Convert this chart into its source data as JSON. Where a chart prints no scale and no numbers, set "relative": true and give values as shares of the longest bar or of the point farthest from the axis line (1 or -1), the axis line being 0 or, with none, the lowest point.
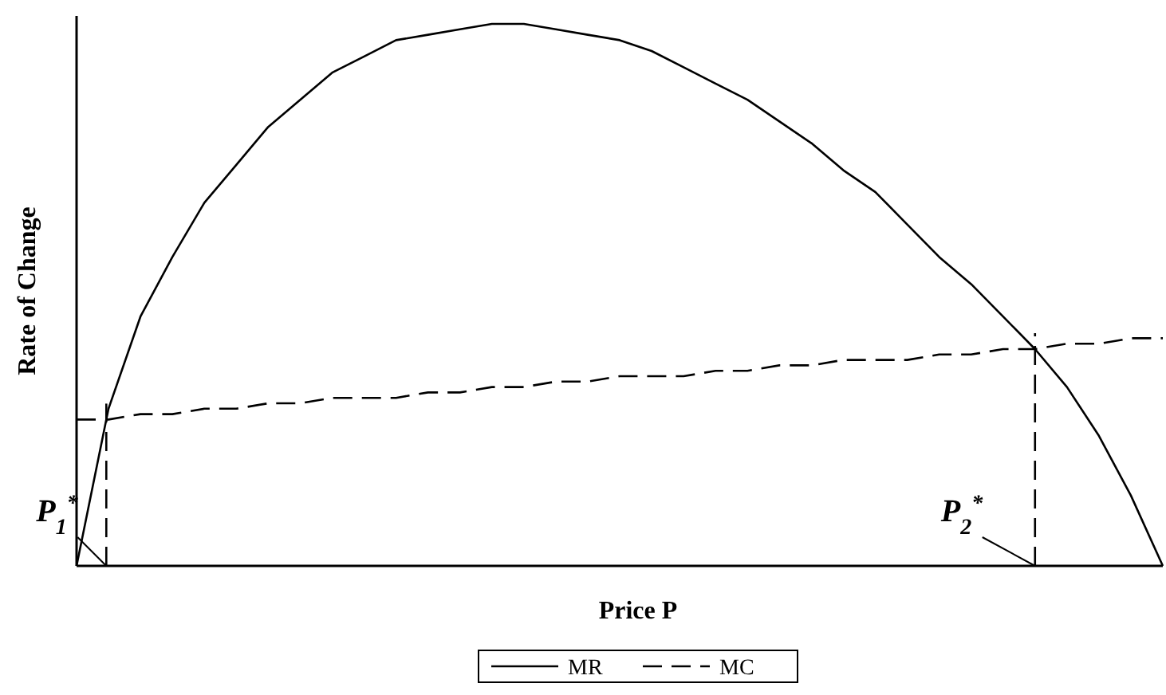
{
  "chart_data": {
    "type": "line",
    "relative": true,
    "xlabel": "Price P",
    "ylabel": "Rate of Change",
    "legend": "bottom",
    "categories": [
      null,
      null,
      null,
      null,
      null,
      null,
      null,
      null,
      null,
      null,
      null,
      null,
      null,
      null,
      null,
      null,
      null,
      null,
      null,
      null,
      null,
      null,
      null,
      null,
      null,
      null,
      null,
      null,
      null,
      null,
      null,
      null,
      null,
      null,
      null
    ],
    "series": [
      {
        "name": "MR",
        "color": "#000000",
        "line_style": "solid",
        "values": [
          0,
          0.29,
          0.46,
          0.57,
          0.67,
          0.74,
          0.81,
          0.86,
          0.91,
          0.94,
          0.97,
          0.98,
          0.99,
          1,
          1,
          0.99,
          0.98,
          0.97,
          0.95,
          0.92,
          0.89,
          0.86,
          0.82,
          0.78,
          0.73,
          0.69,
          0.63,
          0.57,
          0.52,
          0.46,
          0.4,
          0.33,
          0.24,
          0.13,
          0
        ]
      },
      {
        "name": "MC",
        "color": "#000000",
        "line_style": "dashed",
        "values": [
          0.27,
          0.27,
          0.28,
          0.28,
          0.29,
          0.29,
          0.3,
          0.3,
          0.31,
          0.31,
          0.31,
          0.32,
          0.32,
          0.33,
          0.33,
          0.34,
          0.34,
          0.35,
          0.35,
          0.35,
          0.36,
          0.36,
          0.37,
          0.37,
          0.38,
          0.38,
          0.38,
          0.39,
          0.39,
          0.4,
          0.4,
          0.41,
          0.41,
          0.42,
          0.42
        ]
      }
    ],
    "annotations": [
      "P$_{1}$$^{*}$",
      "P$_{2}$$^{*}$"
    ]
  }
}
